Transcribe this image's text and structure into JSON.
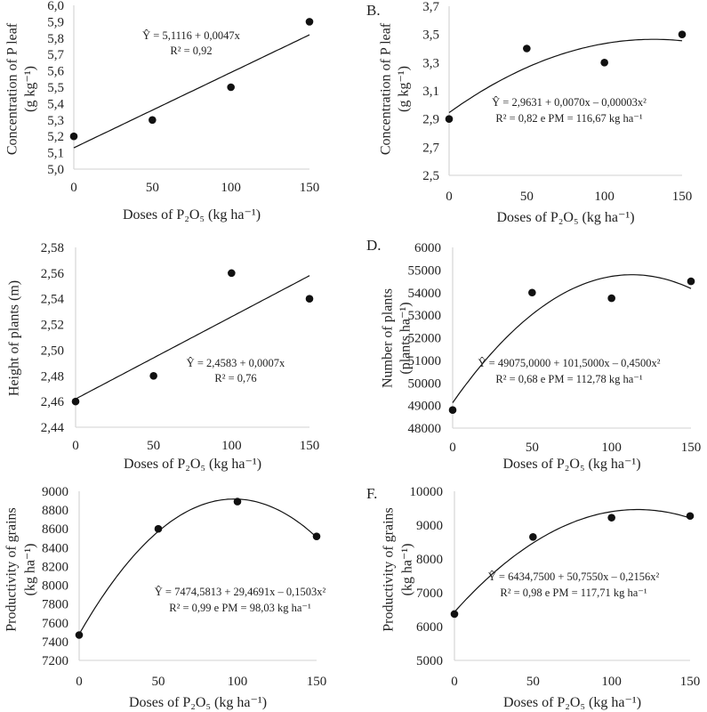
{
  "colors": {
    "axis": "#d9d9d9",
    "marks": "#111111",
    "text": "#222222"
  },
  "chart_data": [
    {
      "type": "scatter",
      "fit": "linear",
      "panel_label": "",
      "x": [
        0,
        50,
        100,
        150
      ],
      "y": [
        5.2,
        5.3,
        5.5,
        5.9
      ],
      "ylim": [
        5.0,
        6.0
      ],
      "xticks": [
        "0",
        "50",
        "100",
        "150"
      ],
      "yticks": [
        "5,0",
        "5,1",
        "5,2",
        "5,3",
        "5,4",
        "5,5",
        "5,6",
        "5,7",
        "5,8",
        "5,9",
        "6,0"
      ],
      "xlabel": "Doses of P₂O₅ (kg ha⁻¹)",
      "ylabel": [
        "Concentration of P leaf",
        "(g kg⁻¹)"
      ],
      "equation": [
        "Ŷ = 5,1116 + 0,0047x",
        "R² = 0,92"
      ],
      "grid": false
    },
    {
      "type": "scatter",
      "fit": "quadratic",
      "panel_label": "B.",
      "x": [
        0,
        50,
        100,
        150
      ],
      "y": [
        2.9,
        3.4,
        3.3,
        3.5
      ],
      "ylim": [
        2.5,
        3.7
      ],
      "xticks": [
        "0",
        "50",
        "100",
        "150"
      ],
      "yticks": [
        "2,5",
        "2,7",
        "2,9",
        "3,1",
        "3,3",
        "3,5",
        "3,7"
      ],
      "xlabel": "Doses of P₂O₅ (kg ha⁻¹)",
      "ylabel": [
        "Concentration of P leaf",
        "(g kg⁻¹)"
      ],
      "equation": [
        "Ŷ = 2,9631 + 0,0070x  – 0,00003x²",
        "R² = 0,82 e PM = 116,67 kg ha⁻¹"
      ],
      "grid": false
    },
    {
      "type": "scatter",
      "fit": "linear",
      "panel_label": "",
      "x": [
        0,
        50,
        100,
        150
      ],
      "y": [
        2.46,
        2.48,
        2.56,
        2.54
      ],
      "ylim": [
        2.44,
        2.58
      ],
      "xticks": [
        "0",
        "50",
        "100",
        "150"
      ],
      "yticks": [
        "2,44",
        "2,46",
        "2,48",
        "2,50",
        "2,52",
        "2,54",
        "2,56",
        "2,58"
      ],
      "xlabel": "Doses of P₂O₅ (kg ha⁻¹)",
      "ylabel": [
        "Height of plants (m)"
      ],
      "equation": [
        "Ŷ = 2,4583 + 0,0007x",
        "R² = 0,76"
      ],
      "grid": false
    },
    {
      "type": "scatter",
      "fit": "quadratic",
      "panel_label": "D.",
      "x": [
        0,
        50,
        100,
        150
      ],
      "y": [
        48800,
        54000,
        53750,
        54500
      ],
      "ylim": [
        48000,
        56000
      ],
      "xticks": [
        "0",
        "50",
        "100",
        "150"
      ],
      "yticks": [
        "48000",
        "49000",
        "50000",
        "51000",
        "52000",
        "53000",
        "54000",
        "55000",
        "6000"
      ],
      "xlabel": "Doses of P₂O₅ (kg ha⁻¹)",
      "ylabel": [
        "Number of plants",
        "(plants ha⁻¹)"
      ],
      "equation": [
        "Ŷ = 49075,0000 + 101,5000x  – 0,4500x²",
        "R² = 0,68 e PM = 112,78 kg ha⁻¹"
      ],
      "grid": false
    },
    {
      "type": "scatter",
      "fit": "quadratic",
      "panel_label": "",
      "x": [
        0,
        50,
        100,
        150
      ],
      "y": [
        7470,
        8600,
        8890,
        8520
      ],
      "ylim": [
        7200,
        9000
      ],
      "xticks": [
        "0",
        "50",
        "100",
        "150"
      ],
      "yticks": [
        "7200",
        "7400",
        "7600",
        "7800",
        "8000",
        "8200",
        "8400",
        "8600",
        "8800",
        "9000"
      ],
      "xlabel": "Doses of P₂O₅ (kg ha⁻¹)",
      "ylabel": [
        "Productivity of grains",
        "(kg ha⁻¹)"
      ],
      "equation": [
        "Ŷ = 7474,5813 + 29,4691x – 0,1503x²",
        "R² = 0,99 e PM = 98,03 kg ha⁻¹"
      ],
      "grid": false
    },
    {
      "type": "scatter",
      "fit": "quadratic",
      "panel_label": "F.",
      "x": [
        0,
        50,
        100,
        150
      ],
      "y": [
        6370,
        8650,
        9220,
        9270
      ],
      "ylim": [
        5000,
        10000
      ],
      "xticks": [
        "0",
        "50",
        "100",
        "150"
      ],
      "yticks": [
        "5000",
        "6000",
        "7000",
        "8000",
        "9000",
        "10000"
      ],
      "xlabel": "Doses of P₂O₅ (kg ha⁻¹)",
      "ylabel": [
        "Productivity of grains",
        "(kg ha⁻¹)"
      ],
      "equation": [
        "Ŷ = 6434,7500 + 50,7550x – 0,2156x²",
        "R² = 0,98 e PM = 117,71 kg ha⁻¹"
      ],
      "grid": false
    }
  ]
}
